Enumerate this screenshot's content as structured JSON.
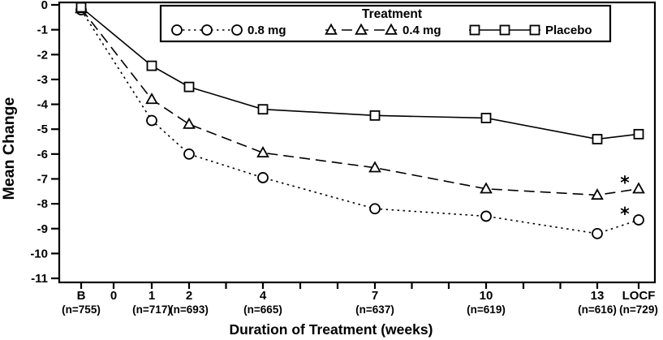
{
  "chart_data": {
    "type": "line",
    "title": "",
    "xlabel": "Duration of Treatment (weeks)",
    "ylabel": "Mean Change",
    "ylim": [
      0,
      -11
    ],
    "grid": false,
    "legend": {
      "title": "Treatment",
      "position": "top"
    },
    "y_ticks": [
      "0",
      "-1",
      "-2",
      "-3",
      "-4",
      "-5",
      "-6",
      "-7",
      "-8",
      "-9",
      "-10",
      "-11"
    ],
    "x_ticks": [
      {
        "label": "B",
        "n": "(n=755)"
      },
      {
        "label": "0",
        "n": ""
      },
      {
        "label": "1",
        "n": "(n=717)"
      },
      {
        "label": "2",
        "n": "(n=693)"
      },
      {
        "label": "4",
        "n": "(n=665)"
      },
      {
        "label": "7",
        "n": "(n=637)"
      },
      {
        "label": "10",
        "n": "(n=619)"
      },
      {
        "label": "13",
        "n": "(n=616)"
      },
      {
        "label": "LOCF",
        "n": "(n=729)"
      }
    ],
    "series": [
      {
        "name": "0.8 mg",
        "marker": "circle",
        "line_style": "dotted",
        "x": [
          "B",
          "1",
          "2",
          "4",
          "7",
          "10",
          "13",
          "LOCF"
        ],
        "values": [
          -0.2,
          -4.65,
          -6.0,
          -6.95,
          -8.2,
          -8.5,
          -9.2,
          -8.65
        ]
      },
      {
        "name": "0.4 mg",
        "marker": "triangle",
        "line_style": "dashed",
        "x": [
          "B",
          "1",
          "2",
          "4",
          "7",
          "10",
          "13",
          "LOCF"
        ],
        "values": [
          -0.15,
          -3.8,
          -4.8,
          -5.95,
          -6.55,
          -7.4,
          -7.65,
          -7.4
        ]
      },
      {
        "name": "Placebo",
        "marker": "square",
        "line_style": "solid",
        "x": [
          "B",
          "1",
          "2",
          "4",
          "7",
          "10",
          "13",
          "LOCF"
        ],
        "values": [
          -0.1,
          -2.45,
          -3.3,
          -4.2,
          -4.45,
          -4.55,
          -5.4,
          -5.2
        ]
      }
    ],
    "annotations": [
      {
        "text": "*",
        "series": "0.4 mg",
        "at": "LOCF"
      },
      {
        "text": "*",
        "series": "0.8 mg",
        "at": "LOCF"
      }
    ],
    "colors": {
      "foreground": "#000000",
      "background": "#ffffff"
    }
  }
}
